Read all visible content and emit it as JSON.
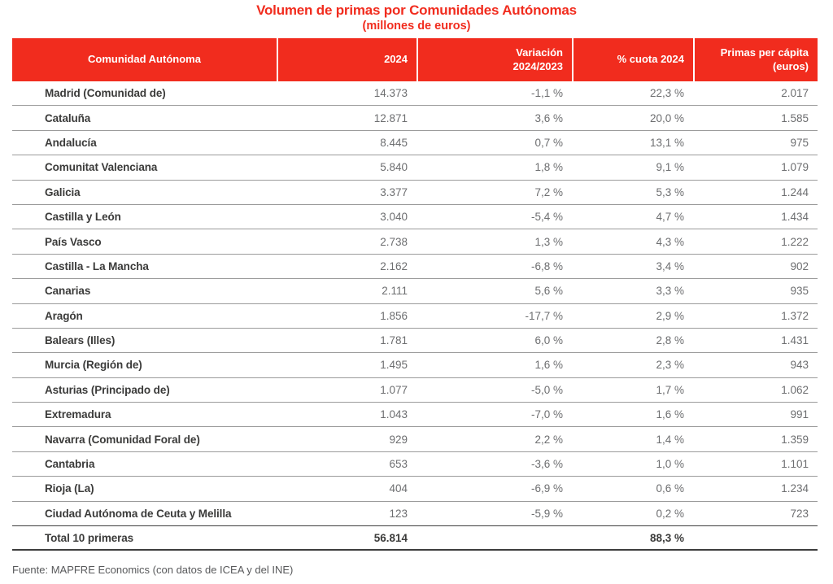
{
  "page": {
    "title": "Volumen de primas por Comunidades Autónomas",
    "subtitle": "(millones de euros)",
    "source": "Fuente: MAPFRE Economics (con datos de ICEA y del INE)"
  },
  "colors": {
    "accent_red": "#F12C1E",
    "header_text": "#FFFFFF",
    "row_name_text": "#3B3B3A",
    "row_value_text": "#6D6E70",
    "row_divider": "#9B9B9B",
    "total_divider": "#3D3D3D",
    "source_text": "#58595B"
  },
  "table": {
    "columns": [
      {
        "id": "name",
        "label": "Comunidad Autónoma"
      },
      {
        "id": "y2024",
        "label": "2024"
      },
      {
        "id": "variacion",
        "label": "Variación\n2024/2023"
      },
      {
        "id": "cuota",
        "label": "% cuota 2024"
      },
      {
        "id": "percapita",
        "label": "Primas per cápita\n(euros)"
      }
    ],
    "rows": [
      {
        "name": "Madrid (Comunidad de)",
        "y2024": "14.373",
        "variacion": "-1,1 %",
        "cuota": "22,3 %",
        "percapita": "2.017"
      },
      {
        "name": "Cataluña",
        "y2024": "12.871",
        "variacion": "3,6 %",
        "cuota": "20,0 %",
        "percapita": "1.585"
      },
      {
        "name": "Andalucía",
        "y2024": "8.445",
        "variacion": "0,7 %",
        "cuota": "13,1 %",
        "percapita": "975"
      },
      {
        "name": "Comunitat Valenciana",
        "y2024": "5.840",
        "variacion": "1,8 %",
        "cuota": "9,1 %",
        "percapita": "1.079"
      },
      {
        "name": "Galicia",
        "y2024": "3.377",
        "variacion": "7,2 %",
        "cuota": "5,3 %",
        "percapita": "1.244"
      },
      {
        "name": "Castilla y León",
        "y2024": "3.040",
        "variacion": "-5,4 %",
        "cuota": "4,7 %",
        "percapita": "1.434"
      },
      {
        "name": "País Vasco",
        "y2024": "2.738",
        "variacion": "1,3 %",
        "cuota": "4,3 %",
        "percapita": "1.222"
      },
      {
        "name": "Castilla - La Mancha",
        "y2024": "2.162",
        "variacion": "-6,8 %",
        "cuota": "3,4 %",
        "percapita": "902"
      },
      {
        "name": "Canarias",
        "y2024": "2.111",
        "variacion": "5,6 %",
        "cuota": "3,3 %",
        "percapita": "935"
      },
      {
        "name": "Aragón",
        "y2024": "1.856",
        "variacion": "-17,7 %",
        "cuota": "2,9 %",
        "percapita": "1.372"
      },
      {
        "name": "Balears (Illes)",
        "y2024": "1.781",
        "variacion": "6,0 %",
        "cuota": "2,8 %",
        "percapita": "1.431"
      },
      {
        "name": "Murcia (Región de)",
        "y2024": "1.495",
        "variacion": "1,6 %",
        "cuota": "2,3 %",
        "percapita": "943"
      },
      {
        "name": "Asturias (Principado de)",
        "y2024": "1.077",
        "variacion": "-5,0 %",
        "cuota": "1,7 %",
        "percapita": "1.062"
      },
      {
        "name": "Extremadura",
        "y2024": "1.043",
        "variacion": "-7,0 %",
        "cuota": "1,6 %",
        "percapita": "991"
      },
      {
        "name": "Navarra (Comunidad Foral de)",
        "y2024": "929",
        "variacion": "2,2 %",
        "cuota": "1,4 %",
        "percapita": "1.359"
      },
      {
        "name": "Cantabria",
        "y2024": "653",
        "variacion": "-3,6 %",
        "cuota": "1,0 %",
        "percapita": "1.101"
      },
      {
        "name": "Rioja (La)",
        "y2024": "404",
        "variacion": "-6,9 %",
        "cuota": "0,6 %",
        "percapita": "1.234"
      },
      {
        "name": "Ciudad Autónoma de Ceuta y Melilla",
        "y2024": "123",
        "variacion": "-5,9 %",
        "cuota": "0,2 %",
        "percapita": "723"
      }
    ],
    "total": {
      "name": "Total 10 primeras",
      "y2024": "56.814",
      "variacion": "",
      "cuota": "88,3 %",
      "percapita": ""
    }
  }
}
